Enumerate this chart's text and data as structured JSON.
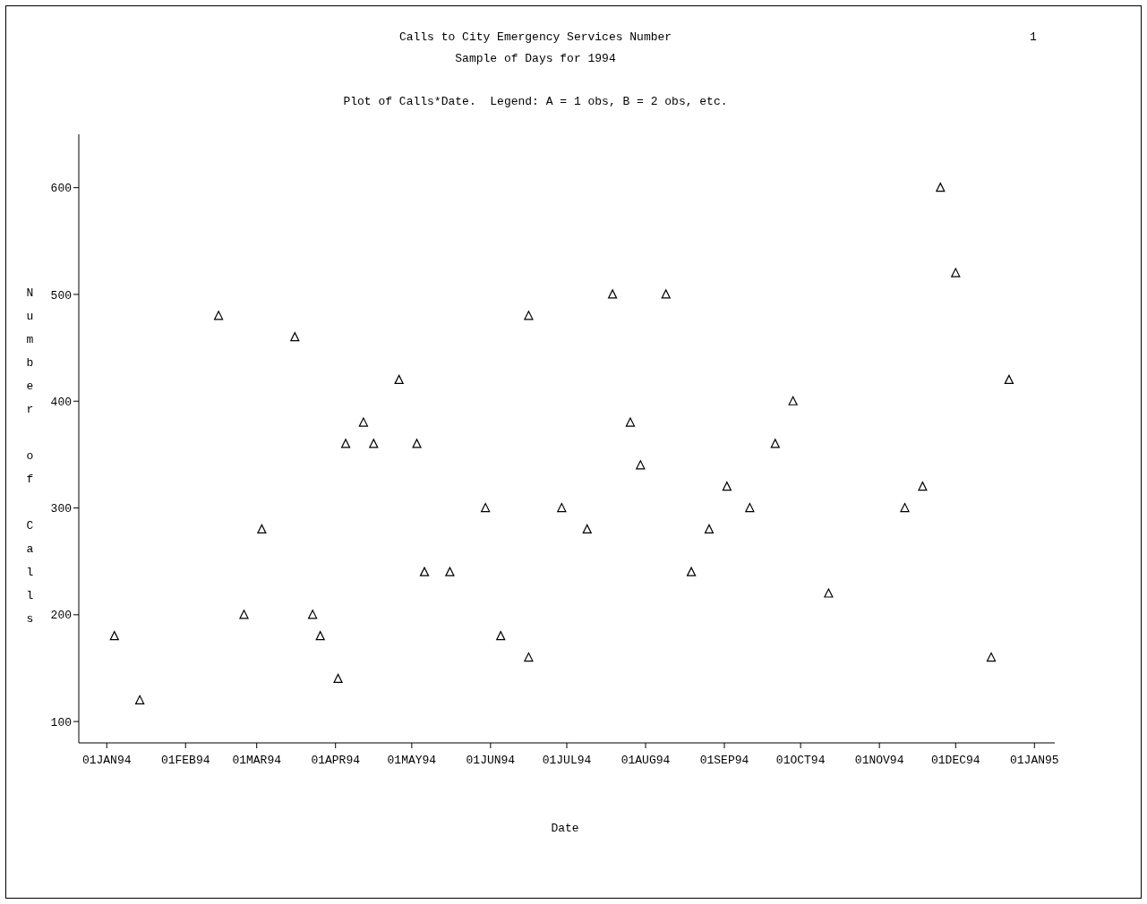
{
  "chart_data": {
    "type": "scatter",
    "title": "Calls to City Emergency Services Number",
    "subtitle": "Sample of Days for 1994",
    "annotations": [
      "1",
      "Plot of Calls*Date.  Legend: A = 1 obs, B = 2 obs, etc."
    ],
    "xlabel": "Date",
    "ylabel": "Number of Calls",
    "x": [
      "1994-01-04",
      "1994-01-14",
      "1994-02-14",
      "1994-02-24",
      "1994-03-03",
      "1994-03-16",
      "1994-03-23",
      "1994-03-26",
      "1994-04-02",
      "1994-04-05",
      "1994-04-12",
      "1994-04-16",
      "1994-04-26",
      "1994-05-03",
      "1994-05-06",
      "1994-05-16",
      "1994-05-30",
      "1994-06-05",
      "1994-06-16",
      "1994-06-16",
      "1994-06-29",
      "1994-07-09",
      "1994-07-19",
      "1994-07-26",
      "1994-07-30",
      "1994-08-09",
      "1994-08-19",
      "1994-08-26",
      "1994-09-02",
      "1994-09-11",
      "1994-09-21",
      "1994-09-28",
      "1994-10-12",
      "1994-11-11",
      "1994-11-18",
      "1994-11-25",
      "1994-12-01",
      "1994-12-15",
      "1994-12-22"
    ],
    "values": [
      180,
      120,
      480,
      200,
      280,
      460,
      200,
      180,
      140,
      360,
      380,
      360,
      420,
      360,
      240,
      240,
      300,
      180,
      480,
      160,
      300,
      280,
      500,
      380,
      340,
      500,
      240,
      280,
      320,
      300,
      360,
      400,
      220,
      300,
      320,
      600,
      520,
      160,
      420
    ],
    "color": "#000000",
    "marker": "triangle",
    "xlim": [
      "1993-12-21",
      "1995-01-09"
    ],
    "xticks": [
      {
        "value": "1994-01-01",
        "label": "01JAN94"
      },
      {
        "value": "1994-02-01",
        "label": "01FEB94"
      },
      {
        "value": "1994-03-01",
        "label": "01MAR94"
      },
      {
        "value": "1994-04-01",
        "label": "01APR94"
      },
      {
        "value": "1994-05-01",
        "label": "01MAY94"
      },
      {
        "value": "1994-06-01",
        "label": "01JUN94"
      },
      {
        "value": "1994-07-01",
        "label": "01JUL94"
      },
      {
        "value": "1994-08-01",
        "label": "01AUG94"
      },
      {
        "value": "1994-09-01",
        "label": "01SEP94"
      },
      {
        "value": "1994-10-01",
        "label": "01OCT94"
      },
      {
        "value": "1994-11-01",
        "label": "01NOV94"
      },
      {
        "value": "1994-12-01",
        "label": "01DEC94"
      },
      {
        "value": "1995-01-01",
        "label": "01JAN95"
      }
    ],
    "ylim": [
      80,
      650
    ],
    "yticks": [
      100,
      200,
      300,
      400,
      500,
      600
    ],
    "grid": false
  }
}
